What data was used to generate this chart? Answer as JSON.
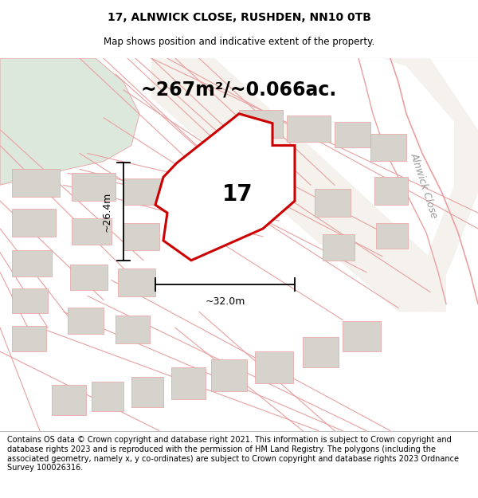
{
  "title_line1": "17, ALNWICK CLOSE, RUSHDEN, NN10 0TB",
  "title_line2": "Map shows position and indicative extent of the property.",
  "area_text": "~267m²/~0.066ac.",
  "number_label": "17",
  "dim_width": "~32.0m",
  "dim_height": "~26.4m",
  "road_label": "Alnwick Close",
  "footer_text": "Contains OS data © Crown copyright and database right 2021. This information is subject to Crown copyright and database rights 2023 and is reproduced with the permission of HM Land Registry. The polygons (including the associated geometry, namely x, y co-ordinates) are subject to Crown copyright and database rights 2023 Ordnance Survey 100026316.",
  "bg_color": "#eceae5",
  "map_bg": "#eceae5",
  "property_fill": "#ffffff",
  "property_edge": "#cc0000",
  "building_fill": "#d6d3cc",
  "road_line_color": "#e8a0a0",
  "road_fill_color": "#f5f0ea",
  "footer_bg": "#ffffff",
  "title_bg": "#ffffff",
  "dim_line_color": "#000000",
  "text_color": "#000000",
  "area_fontsize": 17,
  "title_fontsize": 10,
  "subtitle_fontsize": 8.5,
  "number_fontsize": 20,
  "footer_fontsize": 7.0,
  "dim_fontsize": 9,
  "road_label_fontsize": 9,
  "green_area_color": "#dde8dd",
  "white_road_color": "#f5f2ee"
}
